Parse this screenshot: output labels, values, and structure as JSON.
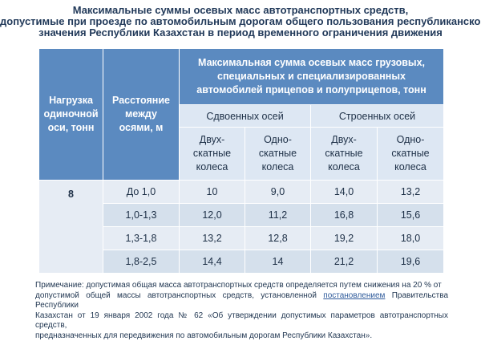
{
  "title": {
    "line1": "Максимальные суммы осевых масс автотранспортных средств,",
    "line2": "допустимые при проезде по автомобильным дорогам общего пользования республиканского",
    "line3": "значения Республики Казахстан в период временного ограничения движения"
  },
  "table": {
    "header": {
      "load": [
        "Нагрузка",
        "одиночной",
        "оси, тонн"
      ],
      "distance": [
        "Расстояние",
        "между",
        "осями, м"
      ],
      "max_sum": [
        "Максимальная сумма осевых масс грузовых,",
        "специальных и специализированных",
        "автомобилей прицепов и полуприцепов, тонн"
      ],
      "group_double": "Сдвоенных осей",
      "group_triple": "Строенных осей",
      "dual_wheels": [
        "Двух-",
        "скатные",
        "колеса"
      ],
      "single_wheels": [
        "Одно-",
        "скатные",
        "колеса"
      ]
    },
    "load_value": "8",
    "rows": [
      {
        "distance": "До 1,0",
        "double_dual": "10",
        "double_single": "9,0",
        "triple_dual": "14,0",
        "triple_single": "13,2"
      },
      {
        "distance": "1,0-1,3",
        "double_dual": "12,0",
        "double_single": "11,2",
        "triple_dual": "16,8",
        "triple_single": "15,6"
      },
      {
        "distance": "1,3-1,8",
        "double_dual": "13,2",
        "double_single": "12,8",
        "triple_dual": "19,2",
        "triple_single": "18,0"
      },
      {
        "distance": "1,8-2,5",
        "double_dual": "14,4",
        "double_single": "14",
        "triple_dual": "21,2",
        "triple_single": "19,6"
      }
    ]
  },
  "note": {
    "line1": "Примечание: допустимая общая масса автотранспортных средств определяется путем снижения на 20 % от",
    "line2_a": "допустимой общей массы автотранспортных средств, установленной",
    "link": "постановлением",
    "line2_b": "Правительства Республики",
    "line3": "Казахстан от 19 января 2002 года № 62 «Об утверждении допустимых параметров автотранспортных средств,",
    "line4": "предназначенных для передвижения по автомобильным дорогам Республики Казахстан»."
  },
  "colors": {
    "header_bg": "#5b8ac0",
    "subheader_bg": "#dde7f3",
    "row_light": "#e6ecf4",
    "row_dark": "#d5e0ec"
  }
}
